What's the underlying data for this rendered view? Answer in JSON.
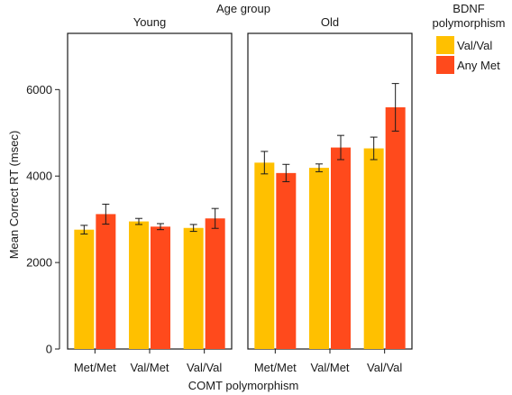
{
  "chart_data": {
    "type": "bar",
    "title": "Age group",
    "xlabel": "COMT polymorphism",
    "ylabel": "Mean Correct RT (msec)",
    "ylim": [
      0,
      7300
    ],
    "yticks": [
      0,
      2000,
      4000,
      6000
    ],
    "categories": [
      "Met/Met",
      "Val/Met",
      "Val/Val"
    ],
    "legend": {
      "title_lines": [
        "BDNF",
        "polymorphism"
      ],
      "placement": "top-right"
    },
    "colors": {
      "Val/Val": "#FFC000",
      "Any Met": "#FF4A1C"
    },
    "panels": [
      {
        "name": "Young",
        "series": [
          {
            "name": "Val/Val",
            "values": [
              2760,
              2950,
              2800
            ],
            "errors": [
              100,
              70,
              80
            ]
          },
          {
            "name": "Any Met",
            "values": [
              3120,
              2830,
              3020
            ],
            "errors": [
              230,
              70,
              230
            ]
          }
        ]
      },
      {
        "name": "Old",
        "series": [
          {
            "name": "Val/Val",
            "values": [
              4310,
              4190,
              4640
            ],
            "errors": [
              260,
              90,
              260
            ]
          },
          {
            "name": "Any Met",
            "values": [
              4070,
              4660,
              5590
            ],
            "errors": [
              200,
              280,
              550
            ]
          }
        ]
      }
    ]
  }
}
